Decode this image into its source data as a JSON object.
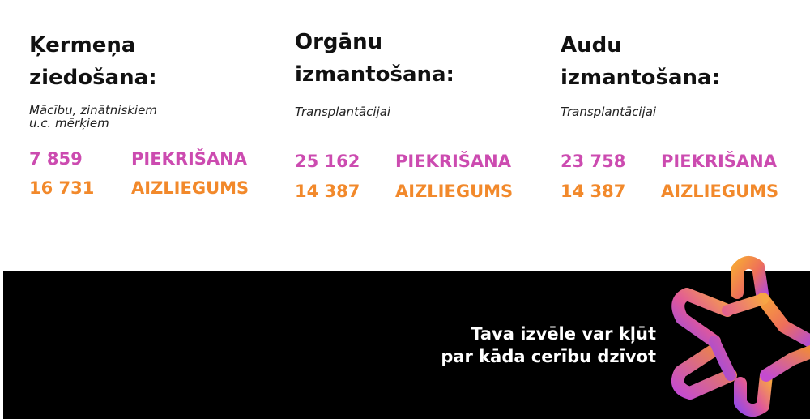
{
  "columns": [
    {
      "title_line1": "Ķermeņa",
      "title_line2": "ziedošana:",
      "subtitle_line1": "Mācību, zinātniskiem",
      "subtitle_line2": "u.c. mērķiem",
      "consent_value": "7 859",
      "consent_label": "PIEKRIŠANA",
      "refusal_value": "16 731",
      "refusal_label": "AIZLIEGUMS"
    },
    {
      "title_line1": "Orgānu",
      "title_line2": "izmantošana:",
      "subtitle_line1": "Transplantācijai",
      "consent_value": "25 162",
      "consent_label": "PIEKRIŠANA",
      "refusal_value": "14 387",
      "refusal_label": "AIZLIEGUMS"
    },
    {
      "title_line1": "Audu",
      "title_line2": "izmantošana:",
      "subtitle_line1": "Transplantācijai",
      "consent_value": "23 758",
      "consent_label": "PIEKRIŠANA",
      "refusal_value": "14 387",
      "refusal_label": "AIZLIEGUMS"
    }
  ],
  "banner": {
    "slogan_line1": "Tava izvēle var kļūt",
    "slogan_line2": "par kāda cerību dzīvot"
  },
  "colors": {
    "consent": "#cc4bb0",
    "refusal": "#f2892b",
    "banner_bg": "#000000"
  },
  "icons": {
    "logo": "gradient-star-logo-icon"
  }
}
